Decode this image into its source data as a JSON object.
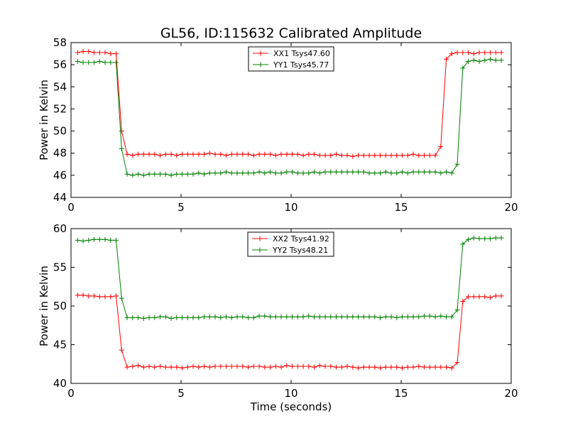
{
  "title": "GL56, ID:115632 Calibrated Amplitude",
  "colors": {
    "red": "#ff0000",
    "green": "#008000"
  },
  "chart_data": [
    {
      "type": "line",
      "xlabel": "",
      "ylabel": "Power in Kelvin",
      "xlim": [
        0,
        20
      ],
      "ylim": [
        44,
        58
      ],
      "xticks": [
        0,
        5,
        10,
        15,
        20
      ],
      "yticks": [
        44,
        46,
        48,
        50,
        52,
        54,
        56,
        58
      ],
      "grid": false,
      "legend": "top-center",
      "series": [
        {
          "name": "XX1 Tsys47.60",
          "color": "#ff0000",
          "x": [
            0.3,
            0.55,
            0.8,
            1.05,
            1.3,
            1.55,
            1.8,
            2.05,
            2.3,
            2.55,
            2.8,
            3.05,
            3.3,
            3.55,
            3.8,
            4.05,
            4.3,
            4.55,
            4.8,
            5.05,
            5.3,
            5.55,
            5.8,
            6.05,
            6.3,
            6.55,
            6.8,
            7.05,
            7.3,
            7.55,
            7.8,
            8.05,
            8.3,
            8.55,
            8.8,
            9.05,
            9.3,
            9.55,
            9.8,
            10.05,
            10.3,
            10.55,
            10.8,
            11.05,
            11.3,
            11.55,
            11.8,
            12.05,
            12.3,
            12.55,
            12.8,
            13.05,
            13.3,
            13.55,
            13.8,
            14.05,
            14.3,
            14.55,
            14.8,
            15.05,
            15.3,
            15.55,
            15.8,
            16.05,
            16.3,
            16.55,
            16.8,
            17.05,
            17.3,
            17.55,
            17.8,
            18.05,
            18.3,
            18.55,
            18.8,
            19.05,
            19.3,
            19.55
          ],
          "y": [
            57.1,
            57.2,
            57.2,
            57.1,
            57.1,
            57.1,
            57.0,
            57.0,
            50.0,
            47.9,
            47.8,
            47.9,
            47.9,
            47.9,
            47.9,
            47.8,
            47.9,
            47.9,
            47.8,
            47.9,
            47.9,
            47.9,
            47.9,
            47.9,
            48.0,
            47.9,
            47.9,
            47.8,
            47.9,
            47.9,
            47.9,
            47.9,
            47.8,
            47.9,
            47.9,
            47.9,
            47.8,
            47.9,
            47.9,
            47.9,
            47.9,
            47.8,
            47.9,
            47.9,
            47.8,
            47.8,
            47.8,
            47.9,
            47.8,
            47.8,
            47.7,
            47.8,
            47.8,
            47.8,
            47.8,
            47.8,
            47.8,
            47.8,
            47.8,
            47.8,
            47.8,
            47.9,
            47.8,
            47.8,
            47.8,
            47.8,
            48.6,
            56.5,
            57.0,
            57.1,
            57.1,
            57.1,
            57.0,
            57.1,
            57.1,
            57.1,
            57.1,
            57.1
          ]
        },
        {
          "name": "YY1 Tsys45.77",
          "color": "#008000",
          "x": [
            0.3,
            0.55,
            0.8,
            1.05,
            1.3,
            1.55,
            1.8,
            2.05,
            2.3,
            2.55,
            2.8,
            3.05,
            3.3,
            3.55,
            3.8,
            4.05,
            4.3,
            4.55,
            4.8,
            5.05,
            5.3,
            5.55,
            5.8,
            6.05,
            6.3,
            6.55,
            6.8,
            7.05,
            7.3,
            7.55,
            7.8,
            8.05,
            8.3,
            8.55,
            8.8,
            9.05,
            9.3,
            9.55,
            9.8,
            10.05,
            10.3,
            10.55,
            10.8,
            11.05,
            11.3,
            11.55,
            11.8,
            12.05,
            12.3,
            12.55,
            12.8,
            13.05,
            13.3,
            13.55,
            13.8,
            14.05,
            14.3,
            14.55,
            14.8,
            15.05,
            15.3,
            15.55,
            15.8,
            16.05,
            16.3,
            16.55,
            16.8,
            17.05,
            17.3,
            17.55,
            17.8,
            18.05,
            18.3,
            18.55,
            18.8,
            19.05,
            19.3,
            19.55
          ],
          "y": [
            56.3,
            56.2,
            56.2,
            56.2,
            56.3,
            56.2,
            56.2,
            56.2,
            48.4,
            46.1,
            46.0,
            46.1,
            46.0,
            46.1,
            46.1,
            46.1,
            46.1,
            46.0,
            46.1,
            46.1,
            46.1,
            46.1,
            46.2,
            46.1,
            46.2,
            46.2,
            46.2,
            46.3,
            46.2,
            46.2,
            46.2,
            46.2,
            46.2,
            46.3,
            46.2,
            46.3,
            46.2,
            46.2,
            46.3,
            46.3,
            46.2,
            46.2,
            46.2,
            46.3,
            46.2,
            46.3,
            46.3,
            46.3,
            46.3,
            46.3,
            46.3,
            46.3,
            46.3,
            46.2,
            46.2,
            46.2,
            46.3,
            46.2,
            46.2,
            46.3,
            46.2,
            46.3,
            46.3,
            46.3,
            46.3,
            46.3,
            46.2,
            46.3,
            46.2,
            47.0,
            55.7,
            56.3,
            56.4,
            56.3,
            56.4,
            56.5,
            56.4,
            56.4
          ]
        }
      ]
    },
    {
      "type": "line",
      "xlabel": "Time (seconds)",
      "ylabel": "Power in Kelvin",
      "xlim": [
        0,
        20
      ],
      "ylim": [
        40,
        60
      ],
      "xticks": [
        0,
        5,
        10,
        15,
        20
      ],
      "yticks": [
        40,
        45,
        50,
        55,
        60
      ],
      "grid": false,
      "legend": "top-center",
      "series": [
        {
          "name": "XX2 Tsys41.92",
          "color": "#ff0000",
          "x": [
            0.3,
            0.55,
            0.8,
            1.05,
            1.3,
            1.55,
            1.8,
            2.05,
            2.3,
            2.55,
            2.8,
            3.05,
            3.3,
            3.55,
            3.8,
            4.05,
            4.3,
            4.55,
            4.8,
            5.05,
            5.3,
            5.55,
            5.8,
            6.05,
            6.3,
            6.55,
            6.8,
            7.05,
            7.3,
            7.55,
            7.8,
            8.05,
            8.3,
            8.55,
            8.8,
            9.05,
            9.3,
            9.55,
            9.8,
            10.05,
            10.3,
            10.55,
            10.8,
            11.05,
            11.3,
            11.55,
            11.8,
            12.05,
            12.3,
            12.55,
            12.8,
            13.05,
            13.3,
            13.55,
            13.8,
            14.05,
            14.3,
            14.55,
            14.8,
            15.05,
            15.3,
            15.55,
            15.8,
            16.05,
            16.3,
            16.55,
            16.8,
            17.05,
            17.3,
            17.55,
            17.8,
            18.05,
            18.3,
            18.55,
            18.8,
            19.05,
            19.3,
            19.55
          ],
          "y": [
            51.4,
            51.4,
            51.3,
            51.3,
            51.2,
            51.2,
            51.2,
            51.3,
            44.3,
            42.1,
            42.2,
            42.3,
            42.1,
            42.2,
            42.1,
            42.2,
            42.1,
            42.1,
            42.1,
            42.0,
            42.1,
            42.2,
            42.1,
            42.2,
            42.1,
            42.2,
            42.2,
            42.2,
            42.2,
            42.2,
            42.2,
            42.1,
            42.2,
            42.2,
            42.1,
            42.1,
            42.2,
            42.1,
            42.3,
            42.2,
            42.2,
            42.2,
            42.2,
            42.1,
            42.3,
            42.2,
            42.2,
            42.1,
            42.1,
            42.2,
            42.1,
            42.0,
            42.1,
            42.1,
            42.1,
            42.0,
            42.1,
            42.1,
            42.1,
            42.0,
            42.1,
            42.1,
            42.2,
            42.1,
            42.1,
            42.1,
            42.1,
            42.1,
            42.0,
            42.7,
            50.6,
            51.2,
            51.2,
            51.2,
            51.2,
            51.1,
            51.3,
            51.3
          ]
        },
        {
          "name": "YY2 Tsys48.21",
          "color": "#008000",
          "x": [
            0.3,
            0.55,
            0.8,
            1.05,
            1.3,
            1.55,
            1.8,
            2.05,
            2.3,
            2.55,
            2.8,
            3.05,
            3.3,
            3.55,
            3.8,
            4.05,
            4.3,
            4.55,
            4.8,
            5.05,
            5.3,
            5.55,
            5.8,
            6.05,
            6.3,
            6.55,
            6.8,
            7.05,
            7.3,
            7.55,
            7.8,
            8.05,
            8.3,
            8.55,
            8.8,
            9.05,
            9.3,
            9.55,
            9.8,
            10.05,
            10.3,
            10.55,
            10.8,
            11.05,
            11.3,
            11.55,
            11.8,
            12.05,
            12.3,
            12.55,
            12.8,
            13.05,
            13.3,
            13.55,
            13.8,
            14.05,
            14.3,
            14.55,
            14.8,
            15.05,
            15.3,
            15.55,
            15.8,
            16.05,
            16.3,
            16.55,
            16.8,
            17.05,
            17.3,
            17.55,
            17.8,
            18.05,
            18.3,
            18.55,
            18.8,
            19.05,
            19.3,
            19.55
          ],
          "y": [
            58.5,
            58.4,
            58.5,
            58.6,
            58.6,
            58.6,
            58.5,
            58.5,
            51.0,
            48.5,
            48.5,
            48.5,
            48.4,
            48.5,
            48.5,
            48.6,
            48.6,
            48.4,
            48.5,
            48.5,
            48.5,
            48.5,
            48.5,
            48.6,
            48.6,
            48.6,
            48.5,
            48.6,
            48.5,
            48.6,
            48.6,
            48.5,
            48.5,
            48.7,
            48.7,
            48.6,
            48.6,
            48.6,
            48.6,
            48.6,
            48.6,
            48.6,
            48.7,
            48.6,
            48.6,
            48.6,
            48.6,
            48.6,
            48.6,
            48.6,
            48.6,
            48.6,
            48.6,
            48.6,
            48.6,
            48.5,
            48.6,
            48.6,
            48.5,
            48.6,
            48.6,
            48.6,
            48.6,
            48.7,
            48.7,
            48.6,
            48.7,
            48.6,
            48.6,
            49.5,
            58.0,
            58.6,
            58.8,
            58.7,
            58.7,
            58.7,
            58.8,
            58.8
          ]
        }
      ]
    }
  ]
}
